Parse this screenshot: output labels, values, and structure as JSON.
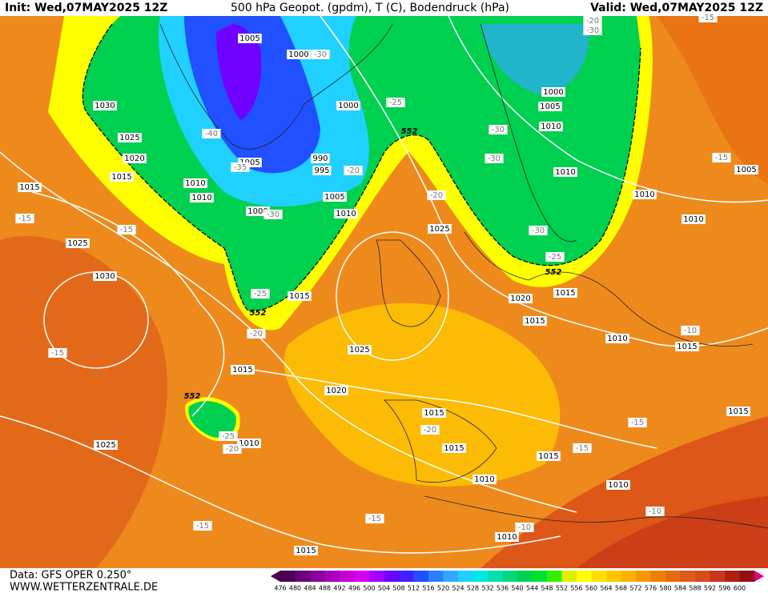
{
  "header": {
    "init": "Init: Wed,07MAY2025 12Z",
    "title": "500 hPa Geopot. (gpdm), T (C), Bodendruck (hPa)",
    "valid": "Valid: Wed,07MAY2025 12Z"
  },
  "footer": {
    "data": "Data: GFS OPER 0.250°",
    "site": "WWW.WETTERZENTRALE.DE"
  },
  "isobar_labels": [
    "1005",
    "1000",
    "1030",
    "1025",
    "1020",
    "1015",
    "1015",
    "1010",
    "1010",
    "1005",
    "990",
    "995",
    "1000",
    "1005",
    "1010",
    "1000",
    "1025",
    "1030",
    "1015",
    "1025",
    "1025",
    "1015",
    "1020",
    "1010",
    "1025",
    "1015",
    "1015",
    "1015",
    "1010",
    "1010",
    "1010",
    "1015",
    "1000",
    "1005",
    "1010",
    "1010",
    "1010",
    "1010",
    "1005",
    "1020",
    "1015",
    "1015",
    "1010",
    "1015",
    "1015"
  ],
  "temperature_labels": [
    "-40",
    "-35",
    "-30",
    "-30",
    "-25",
    "-20",
    "-20",
    "-15",
    "-15",
    "-25",
    "-20",
    "-15",
    "-25",
    "-20",
    "-20",
    "-15",
    "-15",
    "-15",
    "-10",
    "-10",
    "-10",
    "-15",
    "-30",
    "-30",
    "-30",
    "-25",
    "-15",
    "-15",
    "-20",
    "-30"
  ],
  "geopotential_labels": [
    "552",
    "552",
    "552",
    "552"
  ],
  "legend": {
    "labels": [
      476,
      480,
      484,
      488,
      492,
      496,
      500,
      504,
      508,
      512,
      516,
      520,
      524,
      528,
      532,
      536,
      540,
      544,
      548,
      552,
      556,
      560,
      564,
      568,
      572,
      576,
      580,
      584,
      588,
      592,
      596,
      600
    ],
    "colors": [
      "#4b0050",
      "#6a007a",
      "#8a009a",
      "#a800b8",
      "#c400d4",
      "#d800f0",
      "#a000ff",
      "#7000ff",
      "#4020ff",
      "#2050ff",
      "#2a80ff",
      "#30a8ff",
      "#20d0ff",
      "#00e8e0",
      "#00e0b0",
      "#00d880",
      "#00d050",
      "#00e030",
      "#30f000",
      "#e0f000",
      "#ffff00",
      "#ffe000",
      "#ffc800",
      "#ffb000",
      "#f59800",
      "#ee8000",
      "#e86a10",
      "#e05a18",
      "#d84a18",
      "#c83818",
      "#b02010",
      "#901010"
    ]
  }
}
